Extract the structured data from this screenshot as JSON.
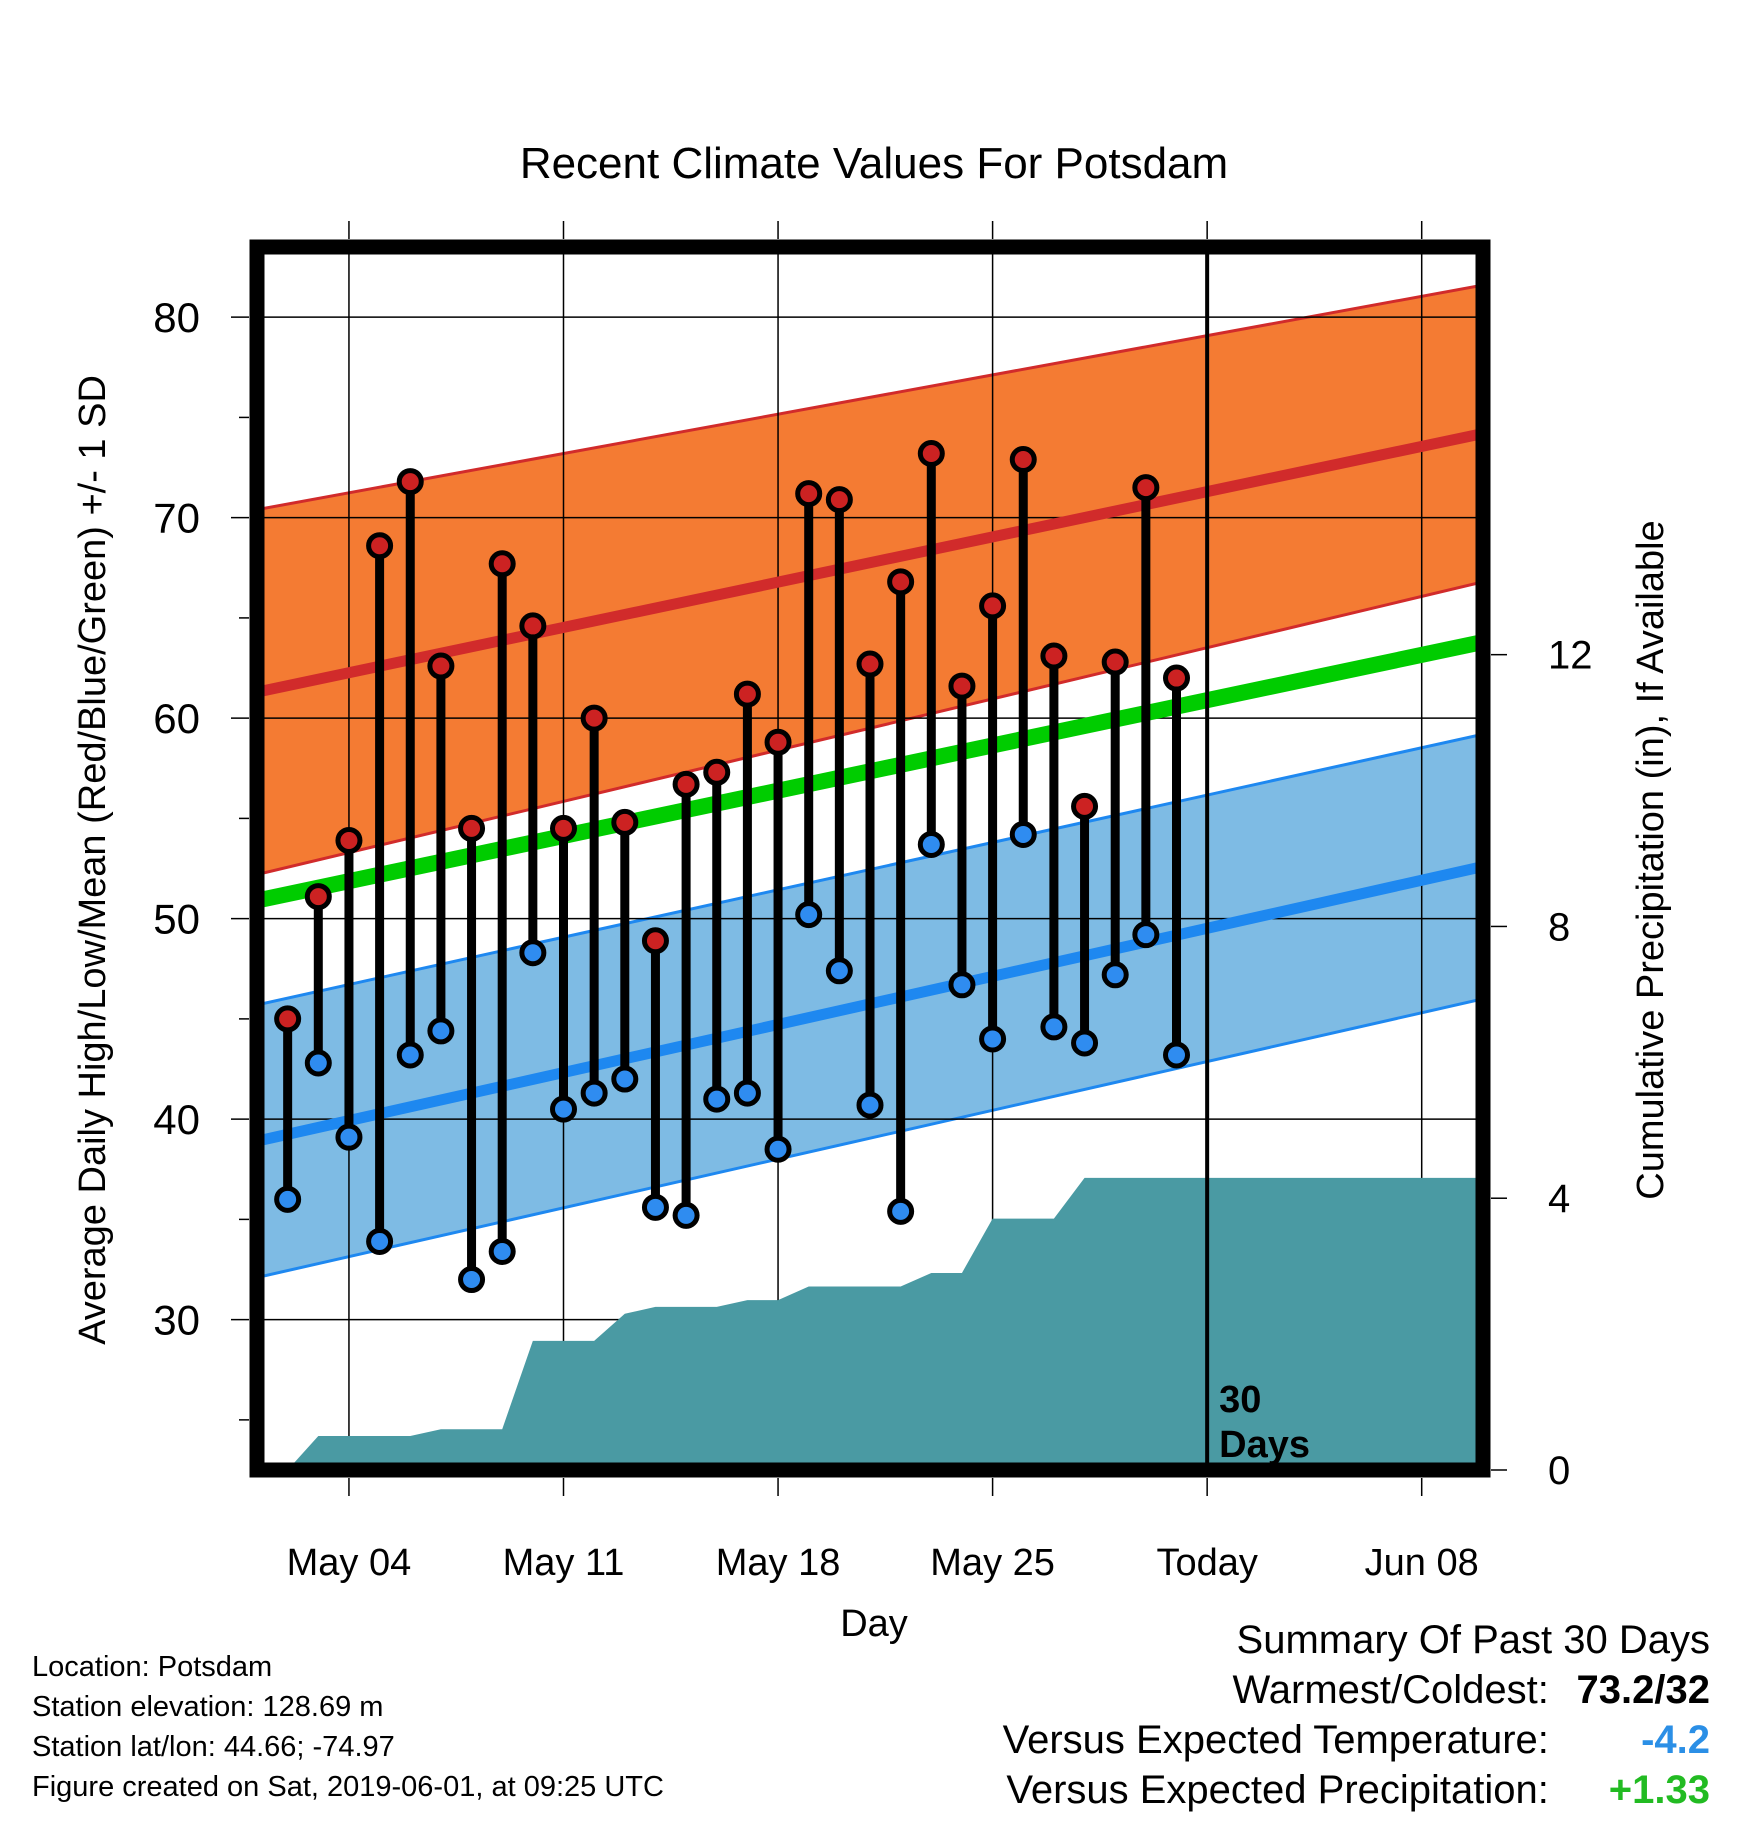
{
  "chart_data": {
    "type": "line",
    "title": "Recent Climate Values For Potsdam",
    "xlabel": "Day",
    "ylabel": "Average Daily High/Low/Mean (Red/Blue/Green) +/- 1 SD",
    "y2label": "Cumulative Precipitation (in), If Available",
    "ylim": [
      22.5,
      83.5
    ],
    "y_ticks": [
      30,
      40,
      50,
      60,
      70,
      80
    ],
    "y2lim": [
      0,
      18.0
    ],
    "y2_ticks": [
      0,
      4,
      8,
      12
    ],
    "xlim": [
      "2019-05-01",
      "2019-06-10"
    ],
    "x_ticks": [
      {
        "date": "2019-05-04",
        "label": "May 04"
      },
      {
        "date": "2019-05-11",
        "label": "May 11"
      },
      {
        "date": "2019-05-18",
        "label": "May 18"
      },
      {
        "date": "2019-05-25",
        "label": "May 25"
      },
      {
        "date": "2019-06-01",
        "label": "Today"
      },
      {
        "date": "2019-06-08",
        "label": "Jun 08"
      }
    ],
    "grid": true,
    "today": "2019-06-01",
    "today_label": "30\nDays",
    "normals": {
      "start_date": "2019-05-01",
      "end_date": "2019-06-10",
      "high_mean": [
        61.3,
        74.2
      ],
      "high_sd": [
        9.1,
        7.4
      ],
      "low_mean": [
        38.9,
        52.6
      ],
      "low_sd": [
        6.8,
        6.6
      ],
      "mean": [
        50.9,
        63.8
      ]
    },
    "daily": [
      {
        "date": "2019-05-02",
        "high": 45.0,
        "low": 36.0
      },
      {
        "date": "2019-05-03",
        "high": 51.1,
        "low": 42.8
      },
      {
        "date": "2019-05-04",
        "high": 53.9,
        "low": 39.1
      },
      {
        "date": "2019-05-05",
        "high": 68.6,
        "low": 33.9
      },
      {
        "date": "2019-05-06",
        "high": 71.8,
        "low": 43.2
      },
      {
        "date": "2019-05-07",
        "high": 62.6,
        "low": 44.4
      },
      {
        "date": "2019-05-08",
        "high": 54.5,
        "low": 32.0
      },
      {
        "date": "2019-05-09",
        "high": 67.7,
        "low": 33.4
      },
      {
        "date": "2019-05-10",
        "high": 64.6,
        "low": 48.3
      },
      {
        "date": "2019-05-11",
        "high": 54.5,
        "low": 40.5
      },
      {
        "date": "2019-05-12",
        "high": 60.0,
        "low": 41.3
      },
      {
        "date": "2019-05-13",
        "high": 54.8,
        "low": 42.0
      },
      {
        "date": "2019-05-14",
        "high": 48.9,
        "low": 35.6
      },
      {
        "date": "2019-05-15",
        "high": 56.7,
        "low": 35.2
      },
      {
        "date": "2019-05-16",
        "high": 57.3,
        "low": 41.0
      },
      {
        "date": "2019-05-17",
        "high": 61.2,
        "low": 41.3
      },
      {
        "date": "2019-05-18",
        "high": 58.8,
        "low": 38.5
      },
      {
        "date": "2019-05-19",
        "high": 71.2,
        "low": 50.2
      },
      {
        "date": "2019-05-20",
        "high": 70.9,
        "low": 47.4
      },
      {
        "date": "2019-05-21",
        "high": 62.7,
        "low": 40.7
      },
      {
        "date": "2019-05-22",
        "high": 66.8,
        "low": 35.4
      },
      {
        "date": "2019-05-23",
        "high": 73.2,
        "low": 53.7
      },
      {
        "date": "2019-05-24",
        "high": 61.6,
        "low": 46.7
      },
      {
        "date": "2019-05-25",
        "high": 65.6,
        "low": 44.0
      },
      {
        "date": "2019-05-26",
        "high": 72.9,
        "low": 54.2
      },
      {
        "date": "2019-05-27",
        "high": 63.1,
        "low": 44.6
      },
      {
        "date": "2019-05-28",
        "high": 55.6,
        "low": 43.8
      },
      {
        "date": "2019-05-29",
        "high": 62.8,
        "low": 47.2
      },
      {
        "date": "2019-05-30",
        "high": 71.5,
        "low": 49.2
      },
      {
        "date": "2019-05-31",
        "high": 62.0,
        "low": 43.2
      }
    ],
    "cumulative_precip": [
      {
        "date": "2019-05-02",
        "value": 0.0
      },
      {
        "date": "2019-05-03",
        "value": 0.5
      },
      {
        "date": "2019-05-04",
        "value": 0.5
      },
      {
        "date": "2019-05-05",
        "value": 0.5
      },
      {
        "date": "2019-05-06",
        "value": 0.5
      },
      {
        "date": "2019-05-07",
        "value": 0.6
      },
      {
        "date": "2019-05-08",
        "value": 0.6
      },
      {
        "date": "2019-05-09",
        "value": 0.6
      },
      {
        "date": "2019-05-10",
        "value": 1.9
      },
      {
        "date": "2019-05-11",
        "value": 1.9
      },
      {
        "date": "2019-05-12",
        "value": 1.9
      },
      {
        "date": "2019-05-13",
        "value": 2.3
      },
      {
        "date": "2019-05-14",
        "value": 2.4
      },
      {
        "date": "2019-05-15",
        "value": 2.4
      },
      {
        "date": "2019-05-16",
        "value": 2.4
      },
      {
        "date": "2019-05-17",
        "value": 2.5
      },
      {
        "date": "2019-05-18",
        "value": 2.5
      },
      {
        "date": "2019-05-19",
        "value": 2.7
      },
      {
        "date": "2019-05-20",
        "value": 2.7
      },
      {
        "date": "2019-05-21",
        "value": 2.7
      },
      {
        "date": "2019-05-22",
        "value": 2.7
      },
      {
        "date": "2019-05-23",
        "value": 2.9
      },
      {
        "date": "2019-05-24",
        "value": 2.9
      },
      {
        "date": "2019-05-25",
        "value": 3.7
      },
      {
        "date": "2019-05-26",
        "value": 3.7
      },
      {
        "date": "2019-05-27",
        "value": 3.7
      },
      {
        "date": "2019-05-28",
        "value": 4.3
      },
      {
        "date": "2019-05-29",
        "value": 4.3
      },
      {
        "date": "2019-05-30",
        "value": 4.3
      },
      {
        "date": "2019-05-31",
        "value": 4.3
      },
      {
        "date": "2019-06-10",
        "value": 4.3
      }
    ]
  },
  "colors": {
    "high_band": "#f47b33",
    "high_line": "#d12b2b",
    "low_band": "#7ebbe4",
    "low_line": "#1e88f0",
    "mean_line": "#00cc00",
    "precip": "#4a9aa3",
    "high_marker": "#cc2222",
    "low_marker": "#2f8cf0",
    "temp_diff": "#2b8fe6",
    "precip_diff": "#22bb22"
  },
  "info": {
    "location": "Location: Potsdam",
    "elevation": "Station elevation: 128.69 m",
    "latlon": "Station lat/lon: 44.66; -74.97",
    "created": "Figure created on Sat, 2019-06-01, at 09:25 UTC"
  },
  "summary": {
    "heading": "Summary Of Past 30 Days",
    "warm_cold_label": "Warmest/Coldest:",
    "warm_cold_value": "73.2/32",
    "temp_label": "Versus Expected Temperature:",
    "temp_value": "-4.2",
    "precip_label": "Versus Expected Precipitation:",
    "precip_value": "+1.33"
  }
}
